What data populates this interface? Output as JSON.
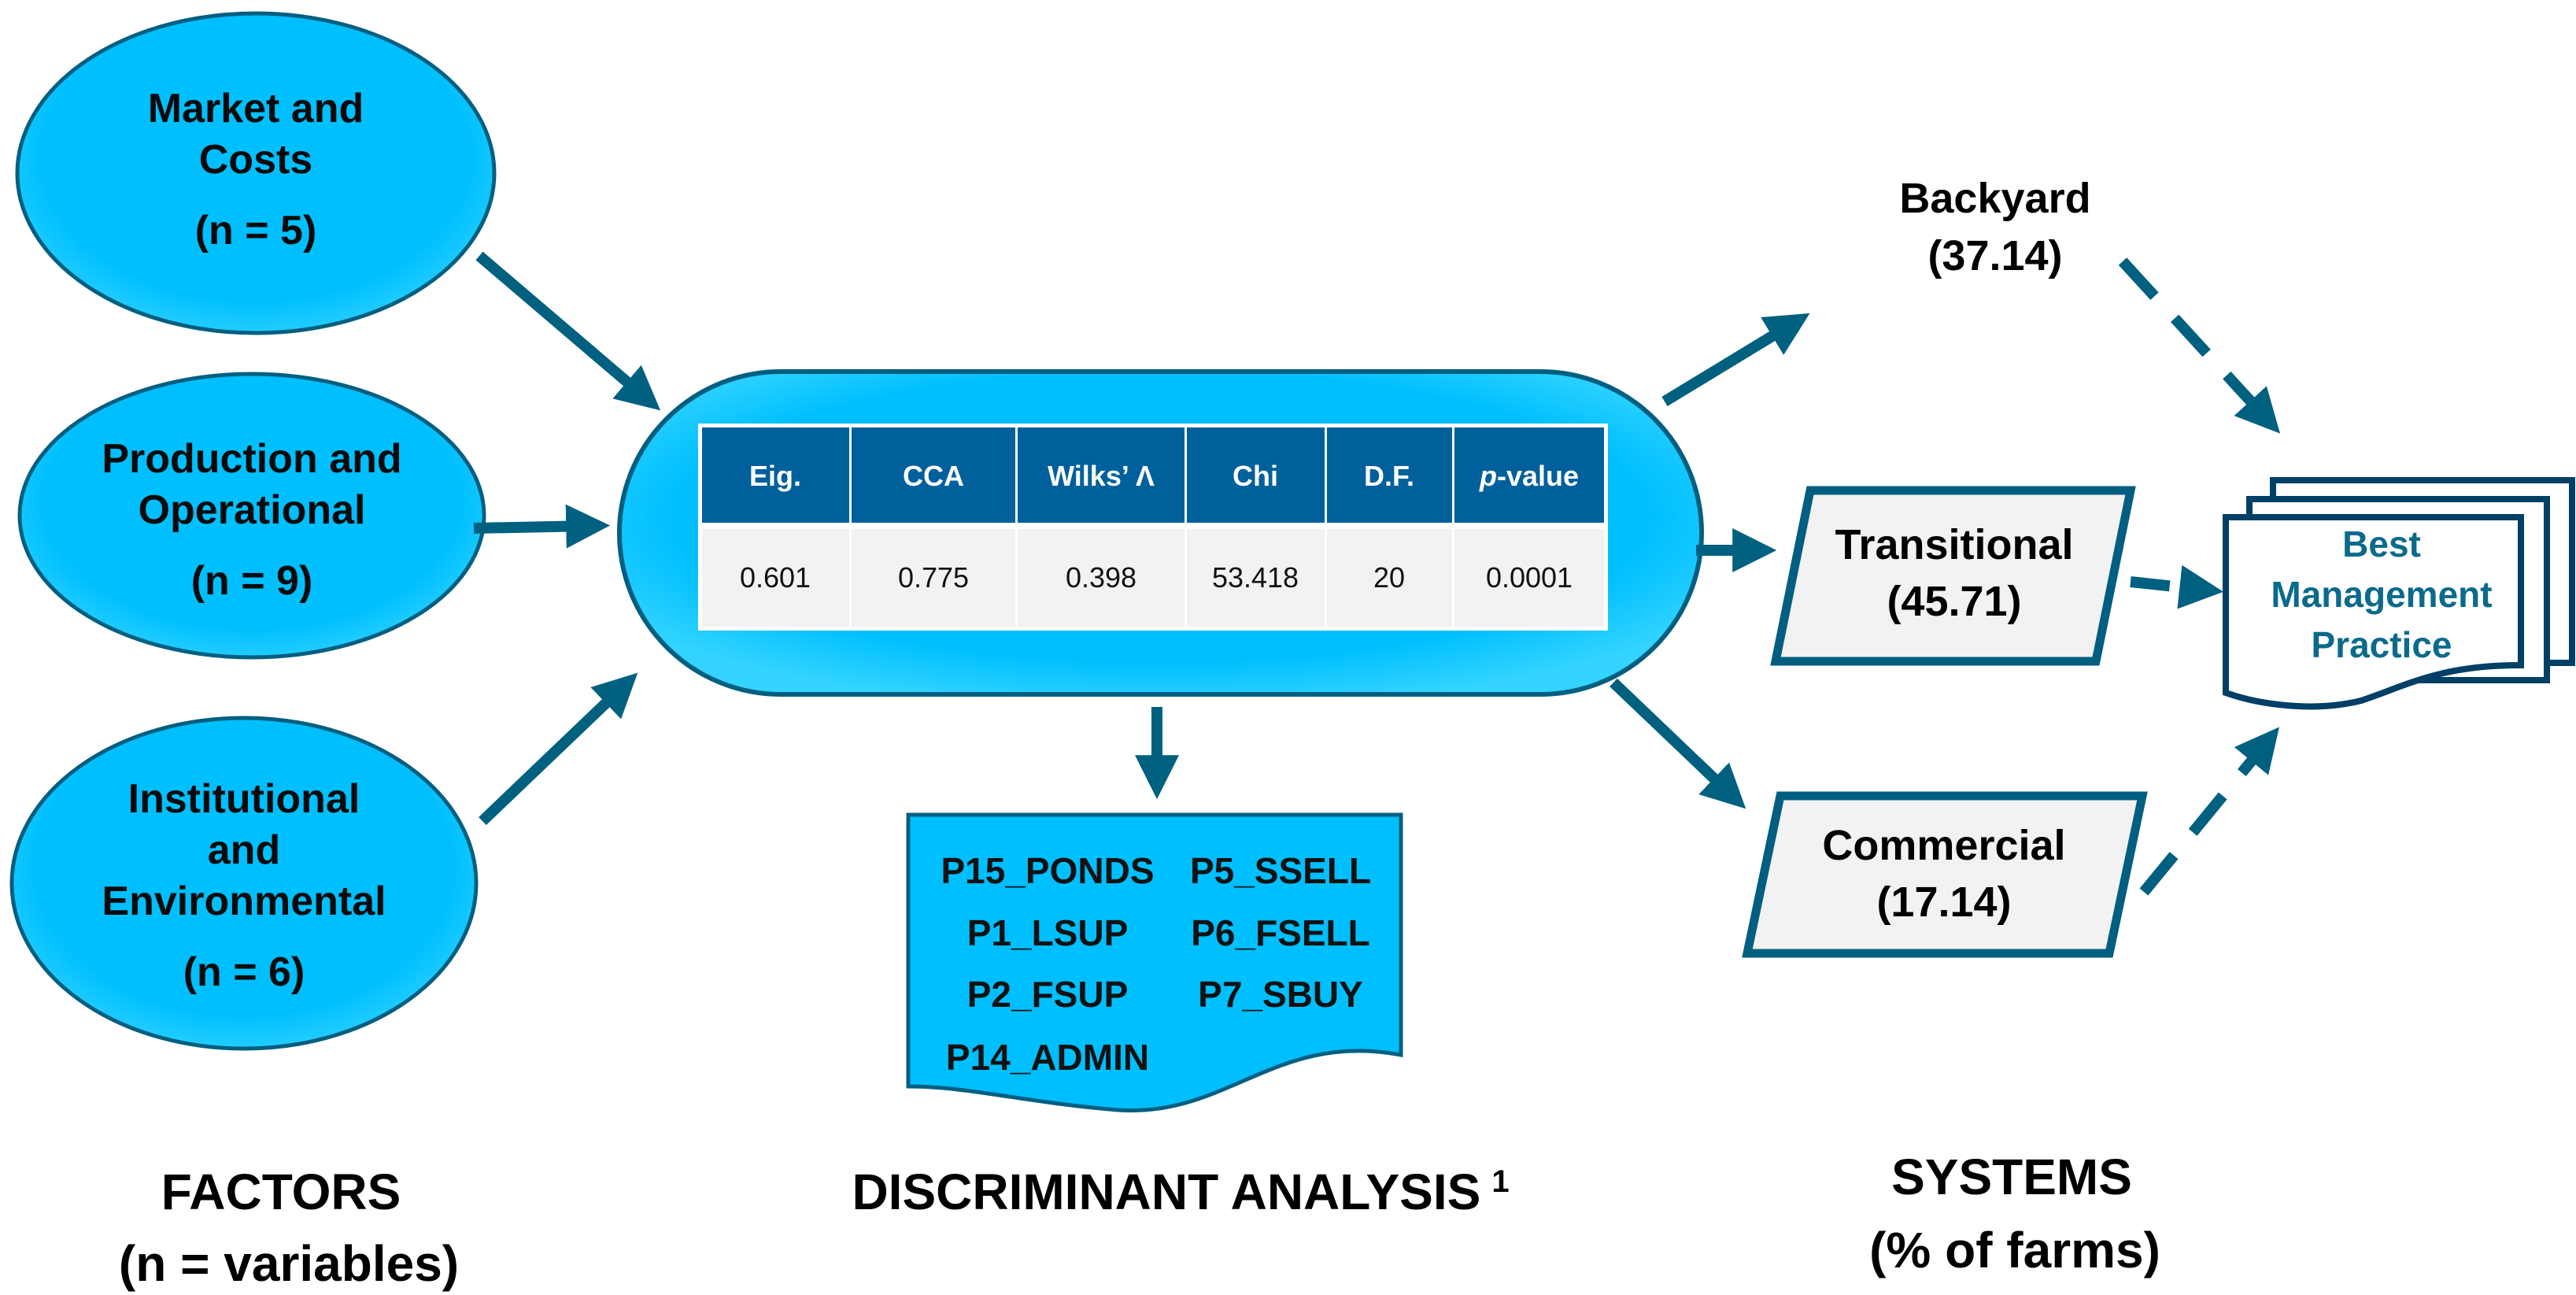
{
  "colors": {
    "ellipse_fill": "#00bfff",
    "outline": "#005f80",
    "arrow": "#006080",
    "table_header": "#00609c",
    "table_body": "#f2f2f2",
    "system_fill": "#f2f2f2",
    "bmp_text": "#0b6a8c"
  },
  "factors": [
    {
      "lines": [
        "Market and",
        "Costs"
      ],
      "n": "(n = 5)"
    },
    {
      "lines": [
        "Production and",
        "Operational"
      ],
      "n": "(n = 9)"
    },
    {
      "lines": [
        "Institutional",
        "and",
        "Environmental"
      ],
      "n": "(n = 6)"
    }
  ],
  "table": {
    "headers": [
      "Eig.",
      "CCA",
      "Wilks’ Λ",
      "Chi",
      "D.F.",
      "p",
      "-value"
    ],
    "values": [
      "0.601",
      "0.775",
      "0.398",
      "53.418",
      "20",
      "0.0001"
    ]
  },
  "variables": [
    "P15_PONDS",
    "P5_SSELL",
    "P1_LSUP",
    "P6_FSELL",
    "P2_FSUP",
    "P7_SBUY",
    "P14_ADMIN"
  ],
  "systems": {
    "backyard": {
      "name": "Backyard",
      "pct": "(37.14)"
    },
    "transitional": {
      "name": "Transitional",
      "pct": "(45.71)"
    },
    "commercial": {
      "name": "Commercial",
      "pct": "(17.14)"
    }
  },
  "bmp": [
    "Best",
    "Management",
    "Practice"
  ],
  "labels": {
    "factors": "FACTORS",
    "factors_sub": "(n = variables)",
    "da": "DISCRIMINANT ANALYSIS",
    "da_sup": "1",
    "systems": "SYSTEMS",
    "systems_sub": "(% of farms)"
  }
}
